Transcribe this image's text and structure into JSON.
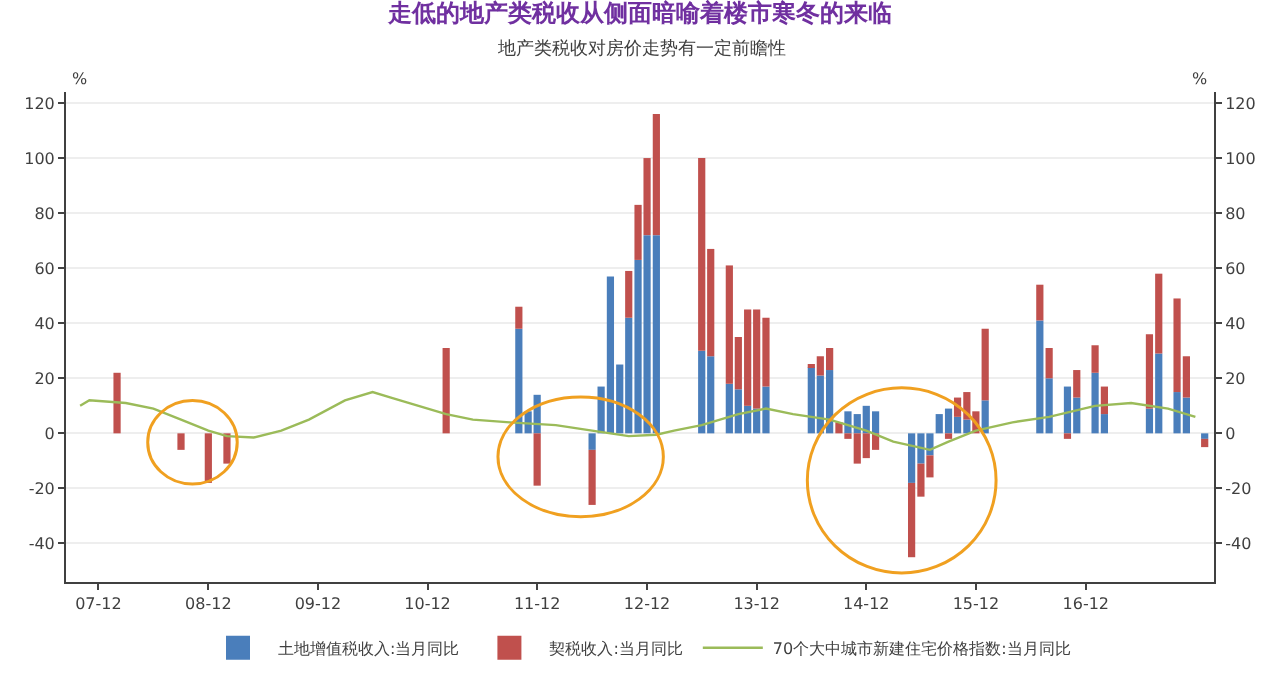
{
  "chart_data": {
    "type": "bar",
    "title": "走低的地产类税收从侧面暗喻着楼市寒冬的来临",
    "subtitle": "地产类税收对房价走势有一定前瞻性",
    "ylabel": "%",
    "y2label": "%",
    "stacked": true,
    "legend": "bottom",
    "grid": "y",
    "x": [
      "2008-02",
      "2008-09",
      "2008-12",
      "2009-02",
      "2011-02",
      "2011-10",
      "2011-11",
      "2011-12",
      "2012-06",
      "2012-07",
      "2012-08",
      "2012-09",
      "2012-10",
      "2012-11",
      "2012-12",
      "2013-01",
      "2013-06",
      "2013-07",
      "2013-09",
      "2013-10",
      "2013-11",
      "2013-12",
      "2014-01",
      "2014-06",
      "2014-07",
      "2014-08",
      "2014-09",
      "2014-10",
      "2014-11",
      "2014-12",
      "2015-01",
      "2015-05",
      "2015-06",
      "2015-07",
      "2015-08",
      "2015-09",
      "2015-10",
      "2015-11",
      "2015-12",
      "2016-01",
      "2016-07",
      "2016-08",
      "2016-10",
      "2016-11",
      "2017-01",
      "2017-02",
      "2017-07",
      "2017-08",
      "2017-10",
      "2017-11",
      "2018-01"
    ],
    "series": [
      {
        "name": "土地增值税收入:当月同比",
        "color": "#4a7ebb",
        "values": [
          null,
          null,
          null,
          null,
          null,
          38,
          8,
          14,
          -6,
          17,
          57,
          25,
          42,
          63,
          72,
          72,
          30,
          28,
          18,
          16,
          10,
          9,
          17,
          24,
          21,
          23,
          null,
          8,
          7,
          10,
          8,
          -18,
          -11,
          -8,
          7,
          9,
          6,
          5,
          null,
          12,
          41,
          20,
          17,
          13,
          22,
          7,
          9,
          29,
          15,
          13,
          -2
        ]
      },
      {
        "name": "契税收入:当月同比",
        "color": "#c0504d",
        "values": [
          22,
          -6,
          -18,
          -11,
          31,
          8,
          null,
          -19,
          -20,
          null,
          null,
          null,
          17,
          20,
          28,
          44,
          70,
          39,
          43,
          19,
          35,
          36,
          25,
          1,
          7,
          8,
          4,
          -2,
          -11,
          -9,
          -6,
          -27,
          -12,
          -8,
          null,
          -2,
          7,
          10,
          8,
          26,
          13,
          11,
          -2,
          10,
          10,
          10,
          27,
          29,
          34,
          15,
          -3
        ]
      },
      {
        "name": "70个大中城市新建住宅价格指数:当月同比",
        "type": "line",
        "axis": "y2",
        "color": "#9bbb59",
        "line_style": "solid",
        "marker": "none",
        "x": [
          "2007-10",
          "2007-11",
          "2008-03",
          "2008-06",
          "2008-09",
          "2008-12",
          "2009-02",
          "2009-05",
          "2009-08",
          "2009-11",
          "2010-03",
          "2010-06",
          "2010-08",
          "2010-11",
          "2011-02",
          "2011-05",
          "2011-09",
          "2012-02",
          "2012-06",
          "2012-10",
          "2013-01",
          "2013-03",
          "2013-06",
          "2013-10",
          "2014-01",
          "2014-04",
          "2014-08",
          "2014-12",
          "2015-03",
          "2015-07",
          "2015-09",
          "2015-12",
          "2016-04",
          "2016-08",
          "2017-01",
          "2017-05",
          "2017-09",
          "2017-12"
        ],
        "values": [
          10,
          12,
          11,
          9,
          5,
          1,
          -1,
          -1.5,
          1,
          5,
          12,
          15,
          13,
          10,
          7,
          5,
          4,
          3,
          1,
          -1,
          -0.5,
          1,
          3,
          7,
          9,
          7,
          5,
          1,
          -3,
          -6,
          -3,
          1,
          4,
          6,
          10,
          11,
          9,
          6
        ]
      }
    ],
    "xlim": [
      "2007-08-15",
      "2018-02-01"
    ],
    "xticks": [
      {
        "value": "2007-12",
        "label": "07-12"
      },
      {
        "value": "2008-12",
        "label": "08-12"
      },
      {
        "value": "2009-12",
        "label": "09-12"
      },
      {
        "value": "2010-12",
        "label": "10-12"
      },
      {
        "value": "2011-12",
        "label": "11-12"
      },
      {
        "value": "2012-12",
        "label": "12-12"
      },
      {
        "value": "2013-12",
        "label": "13-12"
      },
      {
        "value": "2014-12",
        "label": "14-12"
      },
      {
        "value": "2015-12",
        "label": "15-12"
      },
      {
        "value": "2016-12",
        "label": "16-12"
      }
    ],
    "ylim": [
      -54,
      124
    ],
    "yticks": [
      -40,
      -20,
      0,
      20,
      40,
      60,
      80,
      100,
      120
    ],
    "y2lim": [
      -54,
      124
    ],
    "y2ticks": [
      -40,
      -20,
      0,
      20,
      40,
      60,
      80,
      100,
      120
    ]
  }
}
